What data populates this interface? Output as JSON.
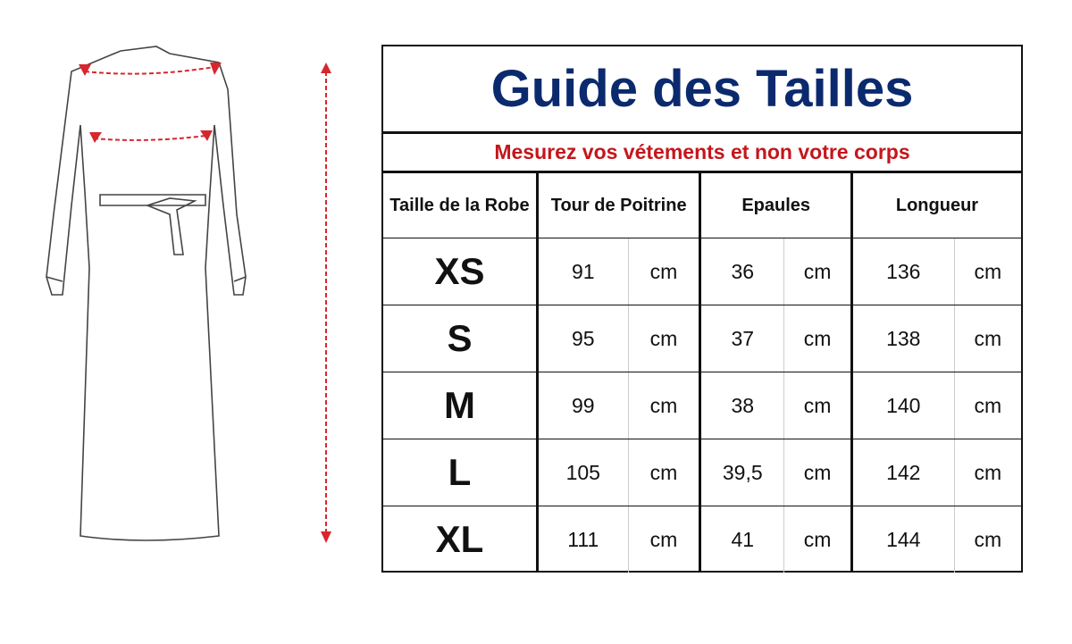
{
  "title": "Guide des Tailles",
  "subtitle": "Mesurez vos vétements et non votre corps",
  "headers": [
    "Taille de la Robe",
    "Tour de Poitrine",
    "Epaules",
    "Longueur"
  ],
  "unit": "cm",
  "rows": [
    {
      "size": "XS",
      "poitrine": "91",
      "epaules": "36",
      "longueur": "136"
    },
    {
      "size": "S",
      "poitrine": "95",
      "epaules": "37",
      "longueur": "138"
    },
    {
      "size": "M",
      "poitrine": "99",
      "epaules": "38",
      "longueur": "140"
    },
    {
      "size": "L",
      "poitrine": "105",
      "epaules": "39,5",
      "longueur": "142"
    },
    {
      "size": "XL",
      "poitrine": "111",
      "epaules": "41",
      "longueur": "144"
    }
  ],
  "colors": {
    "title": "#0b2a6e",
    "subtitle": "#c4161c",
    "measure_lines": "#d7262e"
  }
}
